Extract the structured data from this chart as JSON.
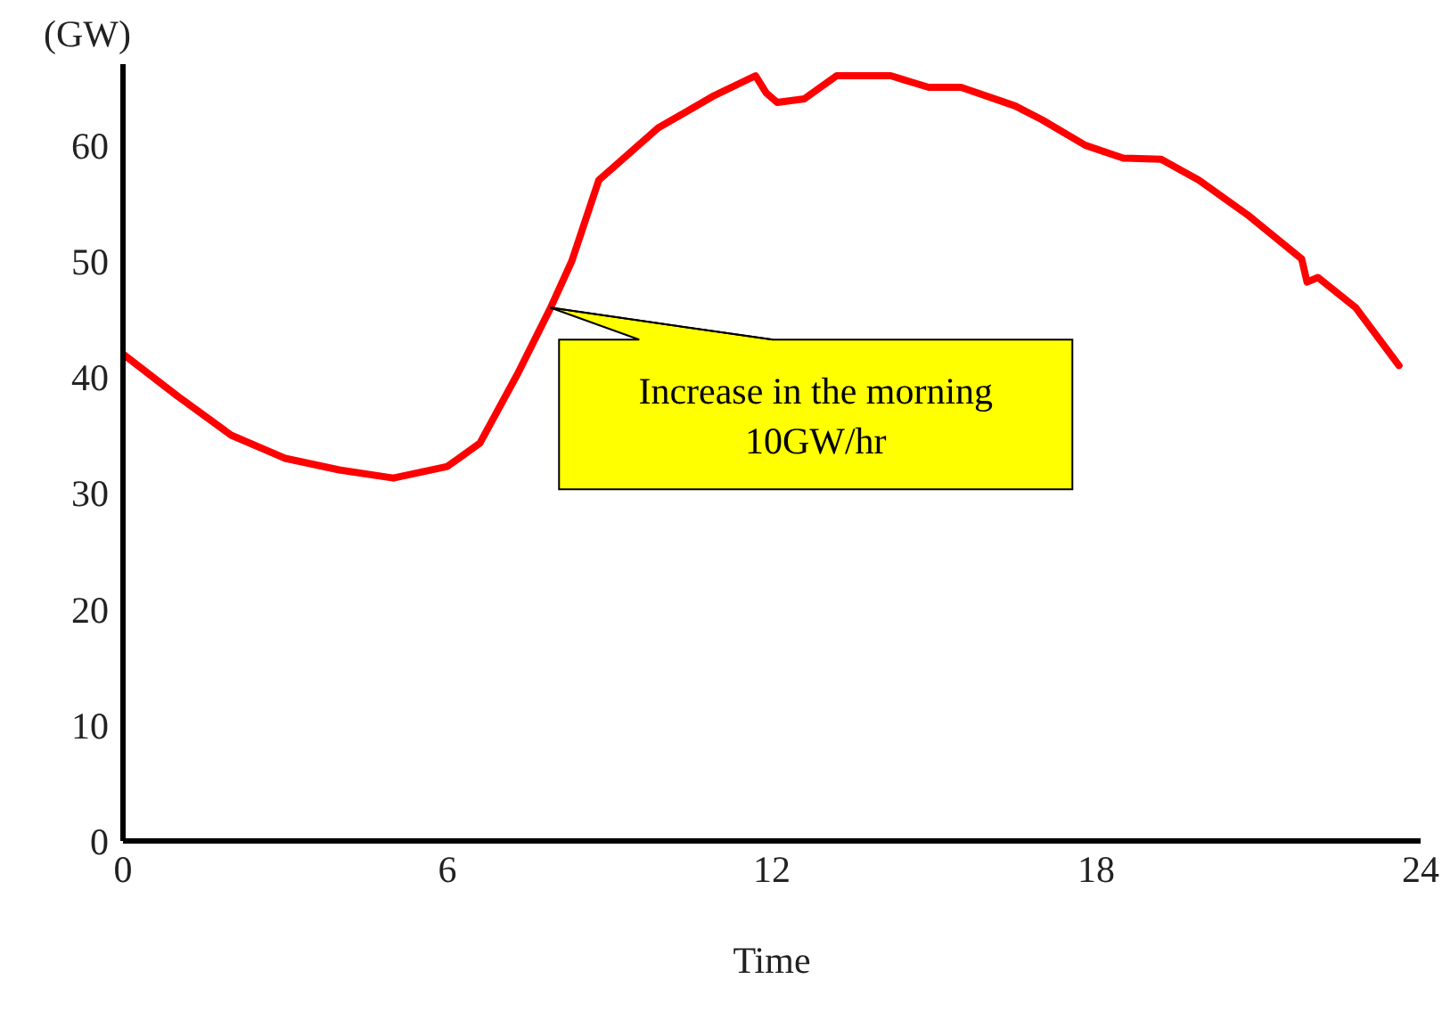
{
  "chart_data": {
    "type": "line",
    "xlabel": "Time",
    "ylabel": "(GW)",
    "x": [
      0,
      1,
      2,
      3,
      4,
      5,
      6,
      6.6,
      7.3,
      7.9,
      8.3,
      8.8,
      9.9,
      10.9,
      11.7,
      11.9,
      12.1,
      12.6,
      13.2,
      14.2,
      14.9,
      15.5,
      16.5,
      17,
      17.8,
      18.5,
      19.2,
      19.9,
      20.8,
      21.8,
      21.9,
      22.1,
      22.8,
      23.6
    ],
    "series": [
      {
        "color": "#ff0000",
        "values": [
          42,
          38.4,
          35,
          33,
          32,
          31.3,
          32.3,
          34.3,
          40.3,
          45.9,
          50,
          57,
          61.5,
          64.2,
          66,
          64.5,
          63.7,
          64,
          66,
          66,
          65,
          65,
          63.4,
          62.2,
          60,
          58.9,
          58.8,
          57,
          54,
          50.2,
          48.2,
          48.6,
          46,
          41
        ]
      }
    ],
    "xlim": [
      0,
      24
    ],
    "xticks": [
      0,
      6,
      12,
      18,
      24
    ],
    "ylim": [
      0,
      67
    ],
    "yticks": [
      0,
      10,
      20,
      30,
      40,
      50,
      60
    ],
    "grid": false,
    "marker": "none",
    "line_style": "solid",
    "annotations": [
      {
        "text": "Increase in the morning\n10GW/hr",
        "x": 7.9,
        "y": 46
      }
    ]
  }
}
